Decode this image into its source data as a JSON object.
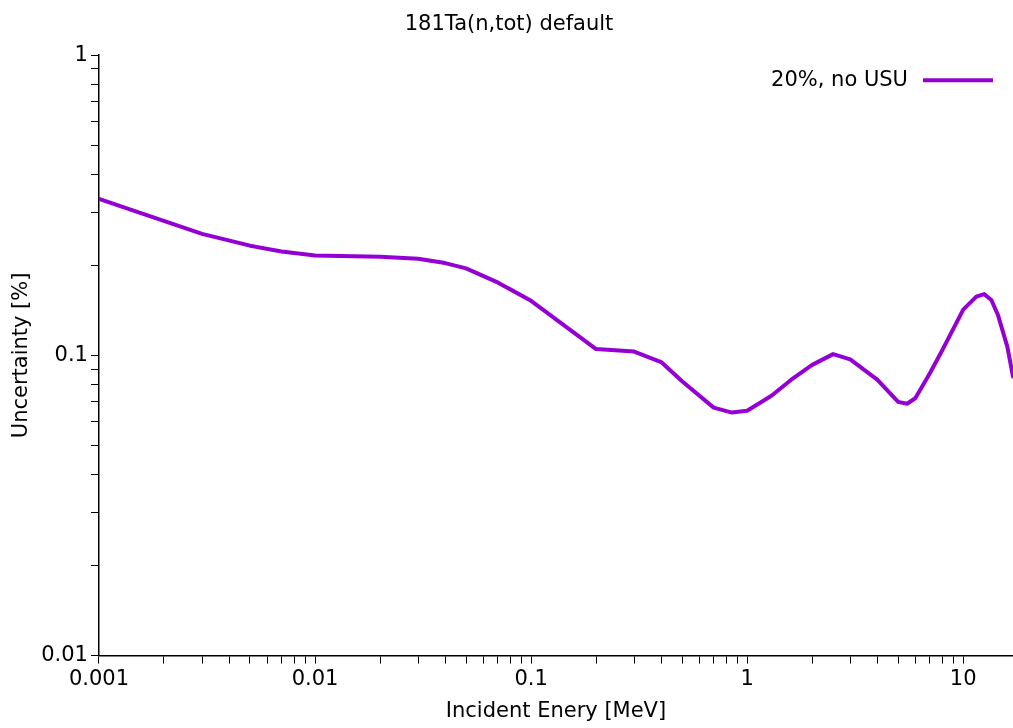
{
  "chart_data": {
    "type": "line",
    "title": "181Ta(n,tot) default",
    "xlabel": "Incident Enery [MeV]",
    "ylabel": "Uncertainty [%]",
    "log": "xy",
    "grid": false,
    "legend": "top right",
    "marker": "none",
    "line_style": "solid",
    "xlim": [
      0.001,
      17
    ],
    "xticks": [
      0.001,
      {
        "value": 0.002,
        "label": null
      },
      {
        "value": 0.003,
        "label": null
      },
      {
        "value": 0.004,
        "label": null
      },
      {
        "value": 0.005,
        "label": null
      },
      {
        "value": 0.006,
        "label": null
      },
      {
        "value": 0.007,
        "label": null
      },
      {
        "value": 0.008,
        "label": null
      },
      {
        "value": 0.009,
        "label": null
      },
      0.01,
      {
        "value": 0.02,
        "label": null
      },
      {
        "value": 0.03,
        "label": null
      },
      {
        "value": 0.04,
        "label": null
      },
      {
        "value": 0.05,
        "label": null
      },
      {
        "value": 0.06,
        "label": null
      },
      {
        "value": 0.07,
        "label": null
      },
      {
        "value": 0.08,
        "label": null
      },
      {
        "value": 0.09,
        "label": null
      },
      0.1,
      {
        "value": 0.2,
        "label": null
      },
      {
        "value": 0.3,
        "label": null
      },
      {
        "value": 0.4,
        "label": null
      },
      {
        "value": 0.5,
        "label": null
      },
      {
        "value": 0.6,
        "label": null
      },
      {
        "value": 0.7,
        "label": null
      },
      {
        "value": 0.8,
        "label": null
      },
      {
        "value": 0.9,
        "label": null
      },
      1,
      {
        "value": 2,
        "label": null
      },
      {
        "value": 3,
        "label": null
      },
      {
        "value": 4,
        "label": null
      },
      {
        "value": 5,
        "label": null
      },
      {
        "value": 6,
        "label": null
      },
      {
        "value": 7,
        "label": null
      },
      {
        "value": 8,
        "label": null
      },
      {
        "value": 9,
        "label": null
      },
      10
    ],
    "ylim": [
      0.01,
      1
    ],
    "yticks": [
      0.01,
      {
        "value": 0.02,
        "label": null
      },
      {
        "value": 0.03,
        "label": null
      },
      {
        "value": 0.04,
        "label": null
      },
      {
        "value": 0.05,
        "label": null
      },
      {
        "value": 0.06,
        "label": null
      },
      {
        "value": 0.07,
        "label": null
      },
      {
        "value": 0.08,
        "label": null
      },
      {
        "value": 0.09,
        "label": null
      },
      0.1,
      {
        "value": 0.2,
        "label": null
      },
      {
        "value": 0.3,
        "label": null
      },
      {
        "value": 0.4,
        "label": null
      },
      {
        "value": 0.5,
        "label": null
      },
      {
        "value": 0.6,
        "label": null
      },
      {
        "value": 0.7,
        "label": null
      },
      {
        "value": 0.8,
        "label": null
      },
      {
        "value": 0.9,
        "label": null
      },
      1
    ],
    "x": [
      0.001,
      0.003,
      0.005,
      0.007,
      0.01,
      0.02,
      0.03,
      0.04,
      0.05,
      0.07,
      0.1,
      0.2,
      0.3,
      0.4,
      0.5,
      0.7,
      0.85,
      1,
      1.3,
      1.6,
      2,
      2.5,
      3,
      4,
      5,
      5.5,
      6,
      7,
      8,
      10,
      11.5,
      12.5,
      13.5,
      14.5,
      16,
      17
    ],
    "series": [
      {
        "name": "20%, no USU",
        "color": "#9400d3",
        "values": [
          0.332,
          0.254,
          0.232,
          0.222,
          0.215,
          0.213,
          0.21,
          0.203,
          0.195,
          0.175,
          0.152,
          0.105,
          0.103,
          0.095,
          0.082,
          0.067,
          0.0645,
          0.0654,
          0.0735,
          0.083,
          0.093,
          0.101,
          0.097,
          0.083,
          0.07,
          0.069,
          0.072,
          0.087,
          0.104,
          0.142,
          0.157,
          0.16,
          0.153,
          0.136,
          0.107,
          0.085
        ]
      }
    ]
  }
}
